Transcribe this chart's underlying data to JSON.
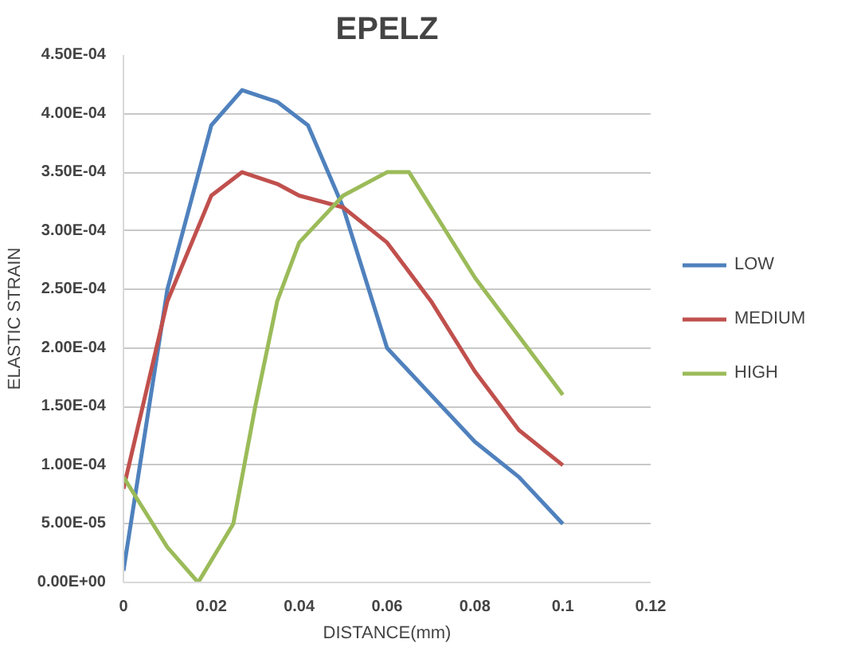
{
  "chart_data": {
    "type": "line",
    "title": "EPELZ",
    "xlabel": "DISTANCE(mm)",
    "ylabel": "ELASTIC STRAIN",
    "xlim": [
      0,
      0.12
    ],
    "xticks": [
      0,
      0.02,
      0.04,
      0.06,
      0.08,
      0.1,
      0.12
    ],
    "ylim": [
      0,
      0.00045
    ],
    "yticks": [
      {
        "value": 0,
        "label": "0.00E+00"
      },
      {
        "value": 5e-05,
        "label": "5.00E-05"
      },
      {
        "value": 0.0001,
        "label": "1.00E-04"
      },
      {
        "value": 0.00015,
        "label": "1.50E-04"
      },
      {
        "value": 0.0002,
        "label": "2.00E-04"
      },
      {
        "value": 0.00025,
        "label": "2.50E-04"
      },
      {
        "value": 0.0003,
        "label": "3.00E-04"
      },
      {
        "value": 0.00035,
        "label": "3.50E-04"
      },
      {
        "value": 0.0004,
        "label": "4.00E-04"
      },
      {
        "value": 0.00045,
        "label": "4.50E-04"
      }
    ],
    "grid": "y",
    "legend": "right",
    "marker": "none",
    "line_style": "solid",
    "series": [
      {
        "name": "LOW",
        "color": "#4f81bd",
        "x": [
          0,
          0.01,
          0.02,
          0.027,
          0.035,
          0.042,
          0.05,
          0.06,
          0.07,
          0.08,
          0.09,
          0.1
        ],
        "values": [
          1e-05,
          0.00025,
          0.00039,
          0.00042,
          0.00041,
          0.00039,
          0.00032,
          0.0002,
          0.00016,
          0.00012,
          9e-05,
          5e-05
        ]
      },
      {
        "name": "MEDIUM",
        "color": "#c0504d",
        "x": [
          0,
          0.01,
          0.02,
          0.027,
          0.035,
          0.04,
          0.05,
          0.06,
          0.07,
          0.08,
          0.09,
          0.1
        ],
        "values": [
          8e-05,
          0.00024,
          0.00033,
          0.00035,
          0.00034,
          0.00033,
          0.00032,
          0.00029,
          0.00024,
          0.00018,
          0.00013,
          0.0001
        ]
      },
      {
        "name": "HIGH",
        "color": "#9bbb59",
        "x": [
          0,
          0.005,
          0.01,
          0.017,
          0.025,
          0.03,
          0.035,
          0.04,
          0.05,
          0.06,
          0.065,
          0.07,
          0.08,
          0.09,
          0.1
        ],
        "values": [
          9e-05,
          6e-05,
          3e-05,
          0,
          5e-05,
          0.00015,
          0.00024,
          0.00029,
          0.00033,
          0.00035,
          0.00035,
          0.00032,
          0.00026,
          0.00021,
          0.00016
        ]
      }
    ]
  }
}
